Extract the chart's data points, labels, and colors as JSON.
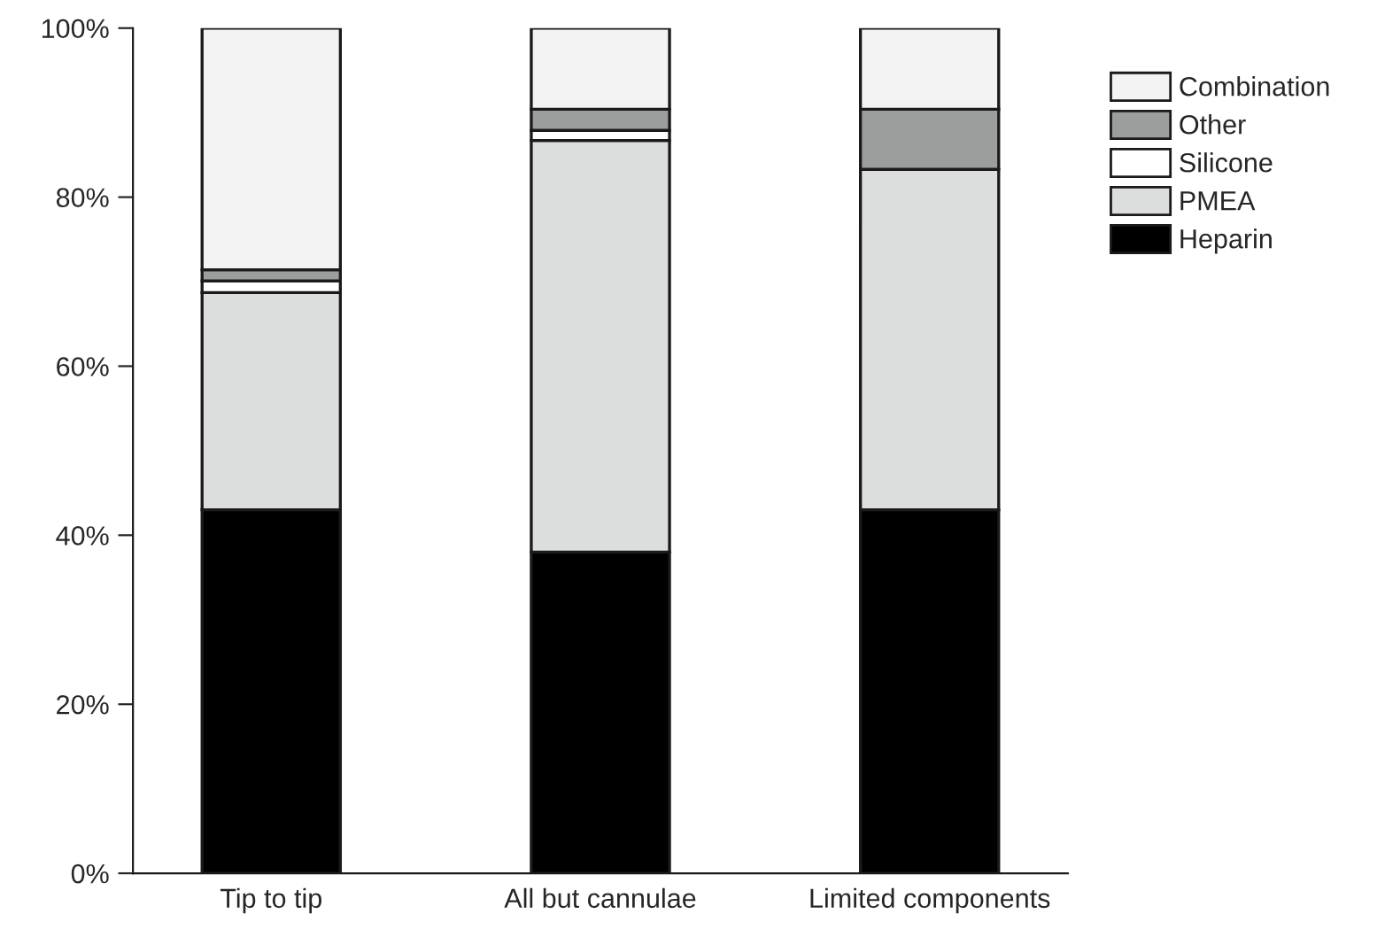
{
  "chart_data": {
    "type": "bar",
    "stacked": true,
    "categories": [
      "Tip to tip",
      "All but cannulae",
      "Limited components"
    ],
    "series": [
      {
        "name": "Heparin",
        "color": "#000000",
        "values": [
          43,
          38,
          43
        ]
      },
      {
        "name": "PMEA",
        "color": "#dcdedd",
        "values": [
          25.7,
          48.7,
          40.3
        ]
      },
      {
        "name": "Silicone",
        "color": "#ffffff",
        "values": [
          1.4,
          1.2,
          0
        ]
      },
      {
        "name": "Other",
        "color": "#9c9e9d",
        "values": [
          1.3,
          2.5,
          7.1
        ]
      },
      {
        "name": "Combination",
        "color": "#f3f3f3",
        "values": [
          28.6,
          9.6,
          9.6
        ]
      }
    ],
    "ylim": [
      0,
      100
    ],
    "yticks": [
      {
        "value": 0,
        "label": "0%"
      },
      {
        "value": 20,
        "label": "20%"
      },
      {
        "value": 40,
        "label": "40%"
      },
      {
        "value": 60,
        "label": "60%"
      },
      {
        "value": 80,
        "label": "80%"
      },
      {
        "value": 100,
        "label": "100%"
      }
    ],
    "grid": false,
    "legend": "right"
  }
}
